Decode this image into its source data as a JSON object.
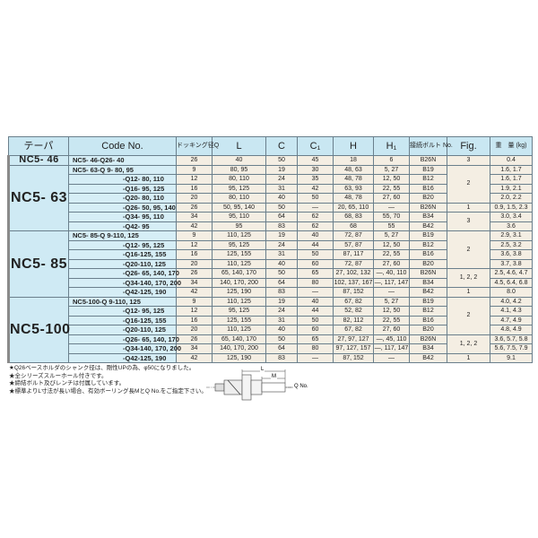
{
  "headers": {
    "taper": "テーパ",
    "code": "Code No.",
    "q": "ドッキング径Q",
    "l": "L",
    "c": "C",
    "c1": "C₁",
    "h": "H",
    "h1": "H₁",
    "bolt": "接続ボルト No.",
    "fig": "Fig.",
    "weight": "重　量 (kg)"
  },
  "groups": [
    {
      "taper": "NC5-  46",
      "rows": [
        {
          "code": "NC5- 46-Q26- 40",
          "q": "26",
          "l": "40",
          "c": "50",
          "c1": "45",
          "h": "18",
          "h1": "6",
          "bolt": "B26N",
          "weight": "0.4"
        }
      ],
      "figs": [
        {
          "value": "3",
          "span": 1
        }
      ]
    },
    {
      "taper": "NC5-  63",
      "rows": [
        {
          "code": "NC5- 63-Q  9- 80,  95",
          "q": "9",
          "l": "80,  95",
          "c": "19",
          "c1": "30",
          "h": "48,  63",
          "h1": "5, 27",
          "bolt": "B19",
          "weight": "1.6, 1.7"
        },
        {
          "code": "-Q12- 80, 110",
          "q": "12",
          "l": "80, 110",
          "c": "24",
          "c1": "35",
          "h": "48,  78",
          "h1": "12, 50",
          "bolt": "B12",
          "weight": "1.6, 1.7"
        },
        {
          "code": "-Q16- 95, 125",
          "q": "16",
          "l": "95, 125",
          "c": "31",
          "c1": "42",
          "h": "63,  93",
          "h1": "22, 55",
          "bolt": "B16",
          "weight": "1.9, 2.1"
        },
        {
          "code": "-Q20- 80, 110",
          "q": "20",
          "l": "80, 110",
          "c": "40",
          "c1": "50",
          "h": "48,  78",
          "h1": "27, 60",
          "bolt": "B20",
          "weight": "2.0, 2.2"
        },
        {
          "code": "-Q26- 50,  95, 140",
          "q": "26",
          "l": "50, 95, 140",
          "c": "50",
          "c1": "—",
          "h": "20, 65, 110",
          "h1": "—",
          "bolt": "B26N",
          "weight": "0.9, 1.5, 2.3"
        },
        {
          "code": "-Q34- 95, 110",
          "q": "34",
          "l": "95, 110",
          "c": "64",
          "c1": "62",
          "h": "68,  83",
          "h1": "55, 70",
          "bolt": "B34",
          "weight": "3.0, 3.4"
        },
        {
          "code": "-Q42- 95",
          "q": "42",
          "l": "95",
          "c": "83",
          "c1": "62",
          "h": "68",
          "h1": "55",
          "bolt": "B42",
          "weight": "3.6"
        }
      ],
      "figs": [
        {
          "value": "2",
          "span": 4
        },
        {
          "value": "1",
          "span": 1
        },
        {
          "value": "3",
          "span": 2
        }
      ]
    },
    {
      "taper": "NC5-  85",
      "rows": [
        {
          "code": "NC5- 85-Q  9-110, 125",
          "q": "9",
          "l": "110, 125",
          "c": "19",
          "c1": "40",
          "h": "72,  87",
          "h1": "5, 27",
          "bolt": "B19",
          "weight": "2.9, 3.1"
        },
        {
          "code": "-Q12-  95, 125",
          "q": "12",
          "l": "95, 125",
          "c": "24",
          "c1": "44",
          "h": "57,  87",
          "h1": "12, 50",
          "bolt": "B12",
          "weight": "2.5, 3.2"
        },
        {
          "code": "-Q16-125, 155",
          "q": "16",
          "l": "125, 155",
          "c": "31",
          "c1": "50",
          "h": "87, 117",
          "h1": "22, 55",
          "bolt": "B16",
          "weight": "3.6, 3.8"
        },
        {
          "code": "-Q20-110, 125",
          "q": "20",
          "l": "110, 125",
          "c": "40",
          "c1": "60",
          "h": "72,  87",
          "h1": "27, 60",
          "bolt": "B20",
          "weight": "3.7, 3.8"
        },
        {
          "code": "-Q26-  65, 140, 170",
          "q": "26",
          "l": "65, 140, 170",
          "c": "50",
          "c1": "65",
          "h": "27, 102, 132",
          "h1": "—, 40, 110",
          "bolt": "B26N",
          "weight": "2.5, 4.6, 4.7"
        },
        {
          "code": "-Q34-140, 170, 200",
          "q": "34",
          "l": "140, 170, 200",
          "c": "64",
          "c1": "80",
          "h": "102, 137, 167",
          "h1": "—, 117, 147",
          "bolt": "B34",
          "weight": "4.5, 6.4, 6.8"
        },
        {
          "code": "-Q42-125, 190",
          "q": "42",
          "l": "125, 190",
          "c": "83",
          "c1": "—",
          "h": "87, 152",
          "h1": "—",
          "bolt": "B42",
          "weight": "8.0"
        }
      ],
      "figs": [
        {
          "value": "2",
          "span": 4
        },
        {
          "value": "1, 2, 2",
          "span": 2
        },
        {
          "value": "1",
          "span": 1
        }
      ]
    },
    {
      "taper": "NC5-100",
      "rows": [
        {
          "code": "NC5-100-Q  9-110, 125",
          "q": "9",
          "l": "110, 125",
          "c": "19",
          "c1": "40",
          "h": "67,  82",
          "h1": "5, 27",
          "bolt": "B19",
          "weight": "4.0, 4.2"
        },
        {
          "code": "-Q12-  95, 125",
          "q": "12",
          "l": "95, 125",
          "c": "24",
          "c1": "44",
          "h": "52,  82",
          "h1": "12, 50",
          "bolt": "B12",
          "weight": "4.1, 4.3"
        },
        {
          "code": "-Q16-125, 155",
          "q": "16",
          "l": "125, 155",
          "c": "31",
          "c1": "50",
          "h": "82, 112",
          "h1": "22, 55",
          "bolt": "B16",
          "weight": "4.7, 4.9"
        },
        {
          "code": "-Q20-110, 125",
          "q": "20",
          "l": "110, 125",
          "c": "40",
          "c1": "60",
          "h": "67,  82",
          "h1": "27, 60",
          "bolt": "B20",
          "weight": "4.8, 4.9"
        },
        {
          "code": "-Q26-  65, 140, 170",
          "q": "26",
          "l": "65, 140, 170",
          "c": "50",
          "c1": "65",
          "h": "27, 97, 127",
          "h1": "—, 45, 110",
          "bolt": "B26N",
          "weight": "3.6, 5.7, 5.8"
        },
        {
          "code": "-Q34-140, 170, 200",
          "q": "34",
          "l": "140, 170, 200",
          "c": "64",
          "c1": "80",
          "h": "97, 127, 157",
          "h1": "—, 117, 147",
          "bolt": "B34",
          "weight": "5.6, 7.5, 7.9"
        },
        {
          "code": "-Q42-125, 190",
          "q": "42",
          "l": "125, 190",
          "c": "83",
          "c1": "—",
          "h": "87, 152",
          "h1": "—",
          "bolt": "B42",
          "weight": "9.1"
        }
      ],
      "figs": [
        {
          "value": "2",
          "span": 4
        },
        {
          "value": "1, 2, 2",
          "span": 2
        },
        {
          "value": "1",
          "span": 1
        }
      ]
    }
  ],
  "notes": [
    "★Q26ベースホルダのシャンク径は、剛性UPの為、φ50になりました。",
    "★全シリーズスルーホール付きです。",
    "★締結ボルト及びレンチは付属しています。",
    "★標準よりL寸法が長い場合、有効ボーリング長MとQ No.をご指定下さい。"
  ],
  "diagram": {
    "l_label": "L",
    "m_label": "M",
    "q_label": "Q No."
  },
  "colors": {
    "header_bg": "#c9e7f2",
    "code_bg": "#d6eef6",
    "value_bg": "#f4eee3",
    "border": "#6a7f8c"
  }
}
